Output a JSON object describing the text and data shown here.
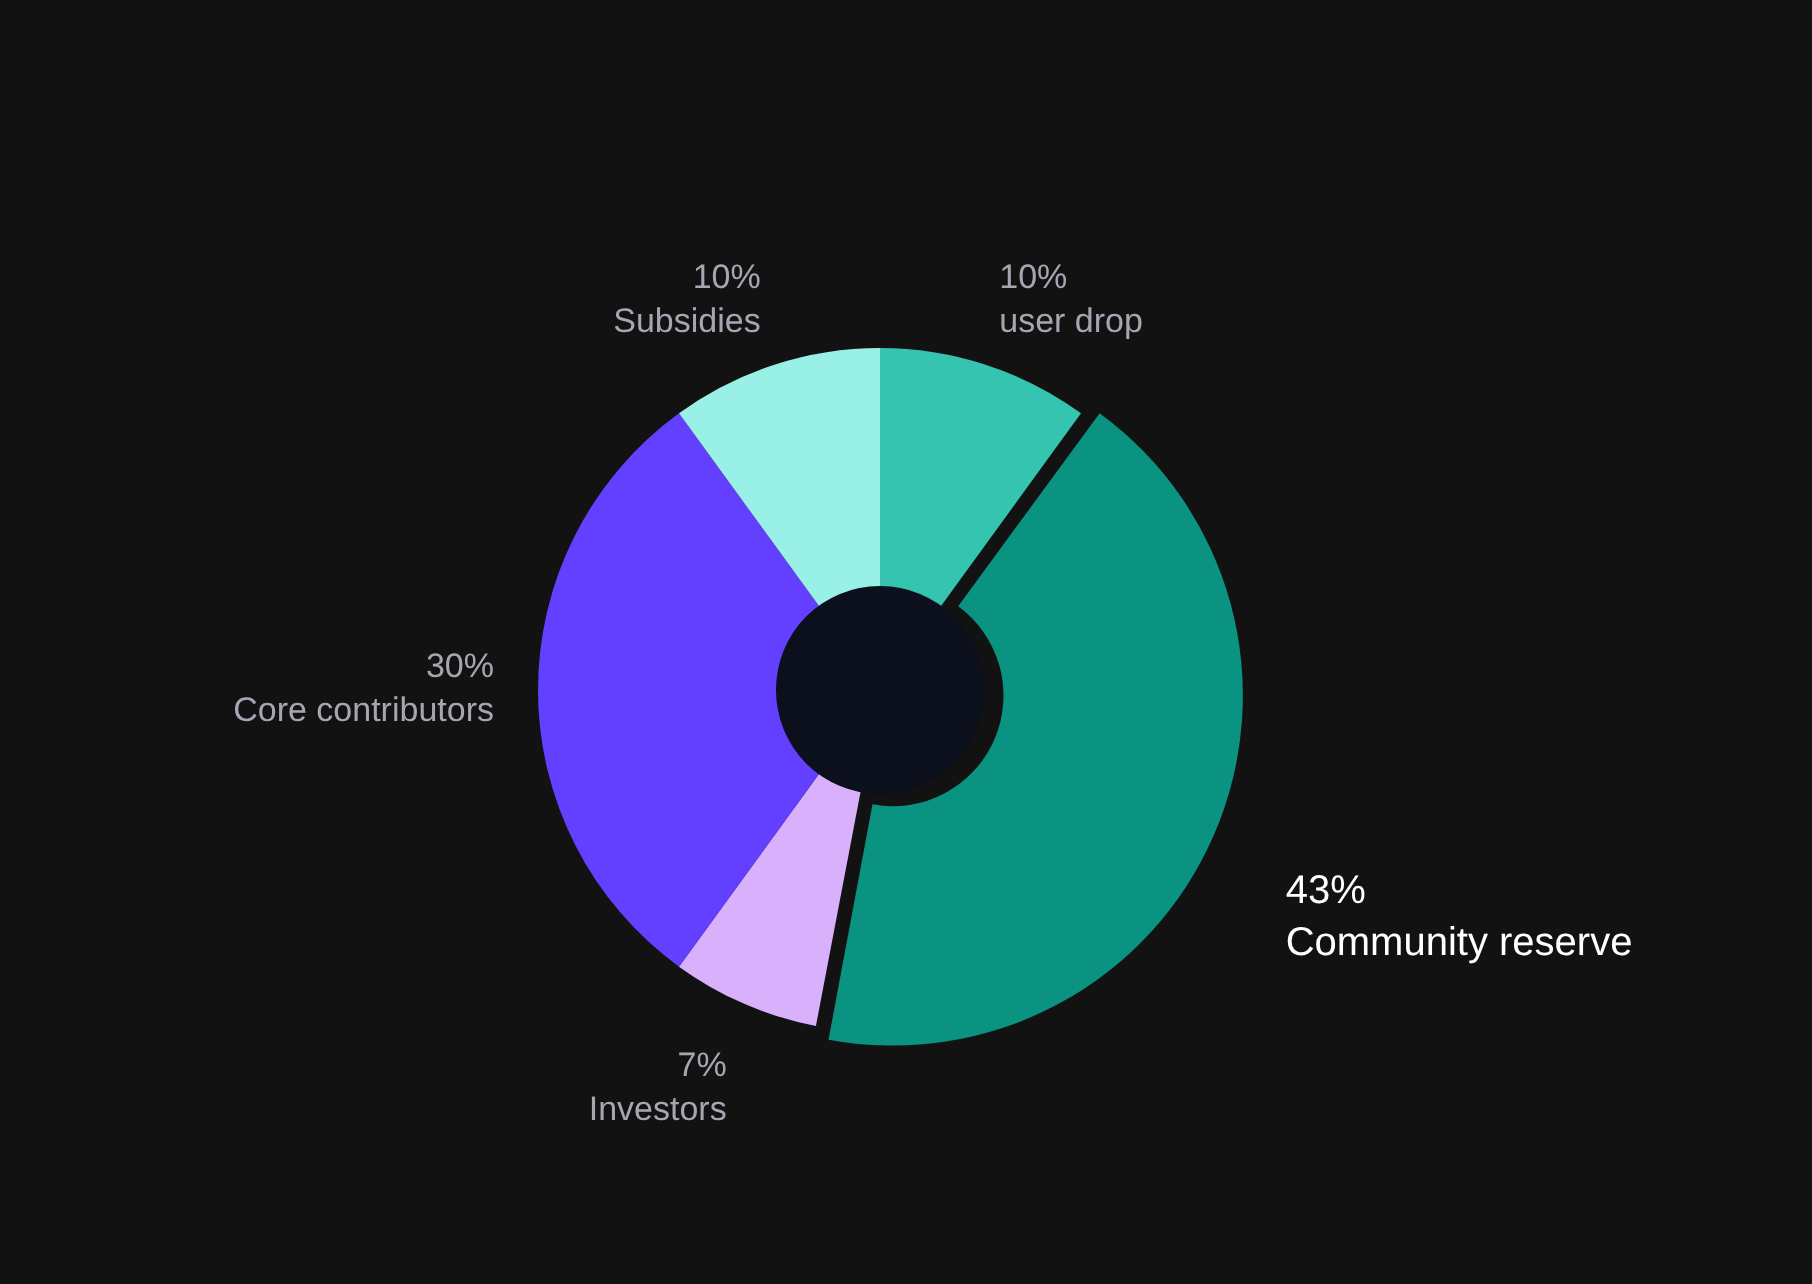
{
  "chart_data": {
    "type": "donut",
    "categories": [
      "user drop",
      "Community reserve",
      "Investors",
      "Core contributors",
      "Subsidies"
    ],
    "values": [
      10,
      43,
      7,
      30,
      10
    ],
    "colors": [
      "#35c4b0",
      "#0a9380",
      "#d8b0fc",
      "#6340ff",
      "#98f0e6"
    ],
    "value_labels": [
      "10%",
      "43%",
      "7%",
      "30%",
      "10%"
    ],
    "legend": false
  }
}
